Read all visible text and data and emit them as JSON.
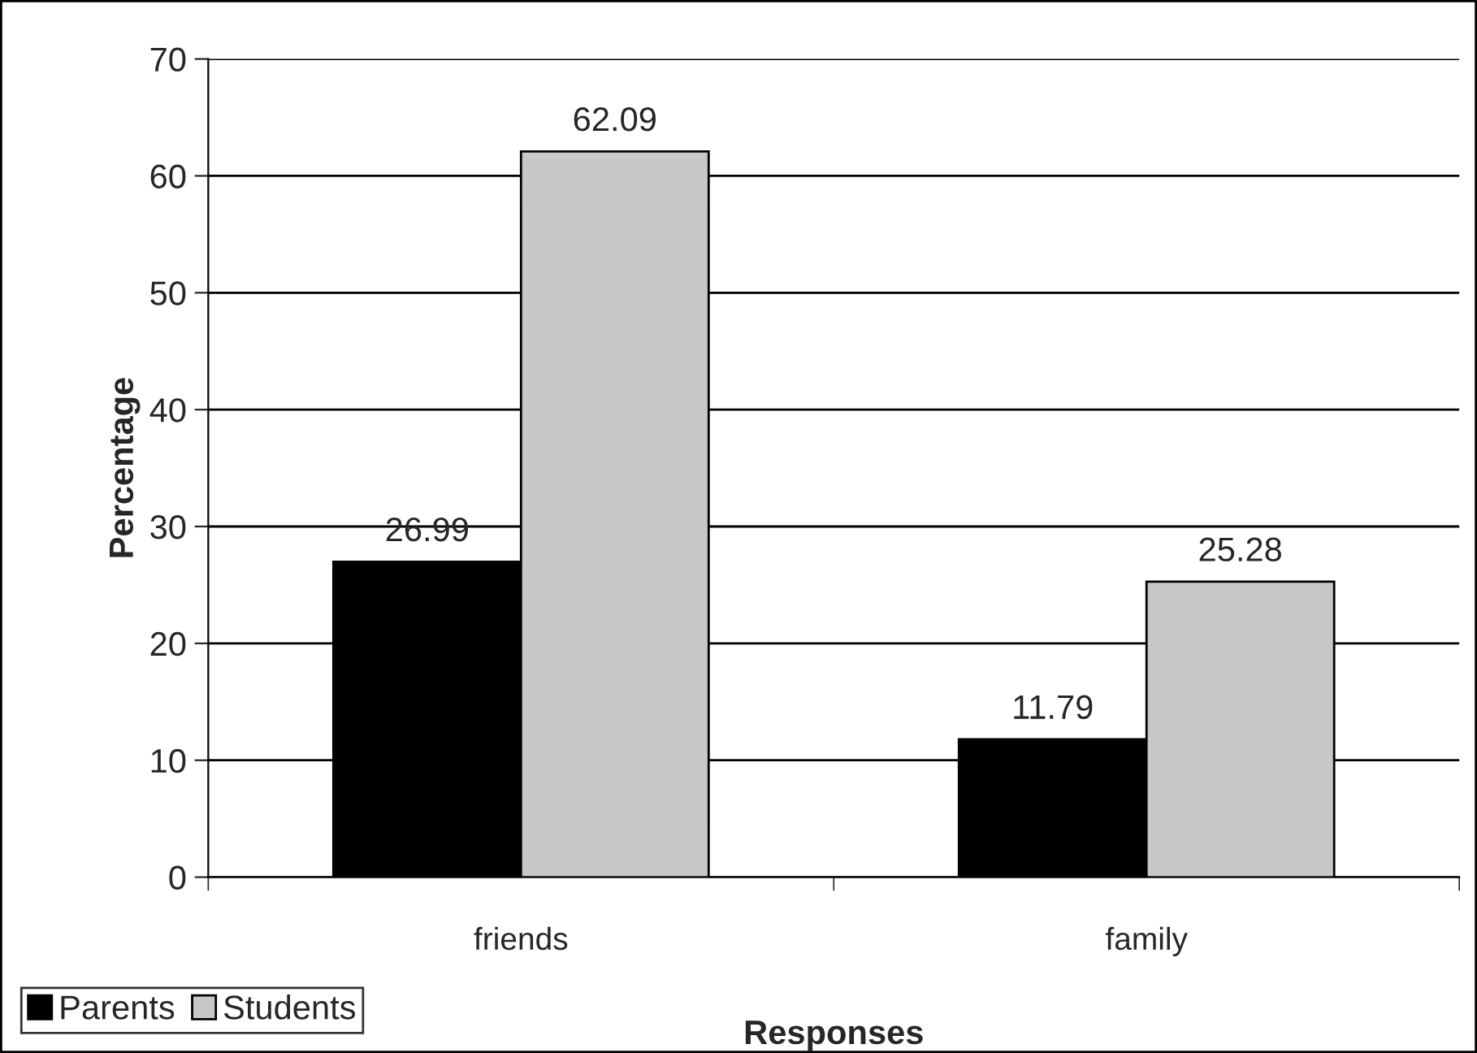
{
  "chart_data": {
    "type": "bar",
    "xlabel": "Responses",
    "ylabel": "Percentage",
    "categories": [
      "friends",
      "family"
    ],
    "series": [
      {
        "name": "Parents",
        "color": "#000000",
        "values": [
          26.99,
          11.79
        ]
      },
      {
        "name": "Students",
        "color": "#c8c8c8",
        "values": [
          62.09,
          25.28
        ]
      }
    ],
    "ylim": [
      0,
      70
    ],
    "yticks": [
      0,
      10,
      20,
      30,
      40,
      50,
      60,
      70
    ],
    "grid": "y",
    "legend": "bottom left",
    "data_labels": true
  }
}
